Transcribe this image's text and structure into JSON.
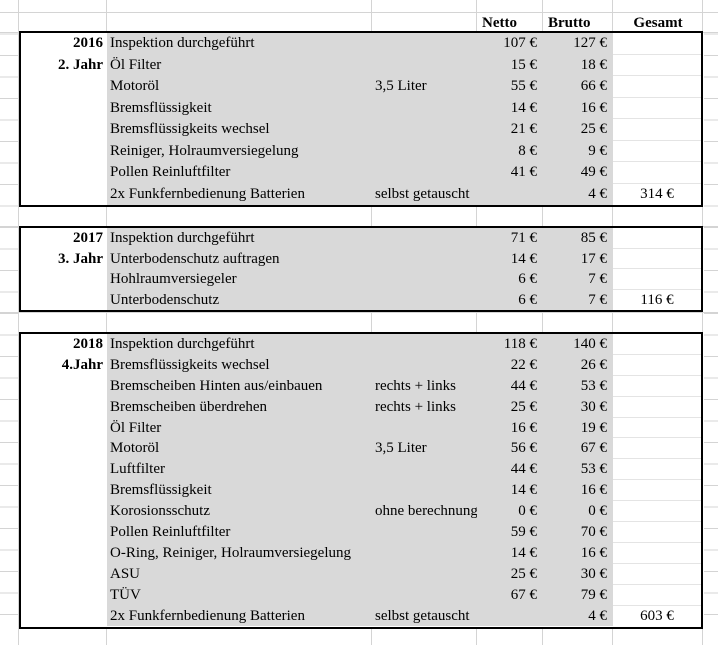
{
  "columns": {
    "netto": "Netto",
    "brutto": "Brutto",
    "gesamt": "Gesamt"
  },
  "colors": {
    "block_fill": "#d9d9d9",
    "gridline": "#d4d4d4",
    "faint_line": "#e4e4e4",
    "border": "#000000"
  },
  "blocks": [
    {
      "year": "2016",
      "jahr": "2. Jahr",
      "rows": [
        {
          "desc": "Inspektion durchgeführt",
          "netto": "107 €",
          "brutto": "127 €"
        },
        {
          "desc": "Öl Filter",
          "netto": "15 €",
          "brutto": "18 €"
        },
        {
          "desc": "Motoröl",
          "note": "3,5 Liter",
          "netto": "55 €",
          "brutto": "66 €"
        },
        {
          "desc": "Bremsflüssigkeit",
          "netto": "14 €",
          "brutto": "16 €"
        },
        {
          "desc": "Bremsflüssigkeits wechsel",
          "netto": "21 €",
          "brutto": "25 €"
        },
        {
          "desc": "Reiniger, Holraumversiegelung",
          "netto": "8 €",
          "brutto": "9 €"
        },
        {
          "desc": "Pollen Reinluftfilter",
          "netto": "41 €",
          "brutto": "49 €"
        },
        {
          "desc": "2x Funkfernbedienung Batterien",
          "note": "selbst getauscht",
          "netto": "",
          "brutto": "4 €",
          "gesamt": "314 €"
        }
      ]
    },
    {
      "year": "2017",
      "jahr": "3. Jahr",
      "rows": [
        {
          "desc": "Inspektion durchgeführt",
          "netto": "71 €",
          "brutto": "85 €"
        },
        {
          "desc": "Unterbodenschutz auftragen",
          "netto": "14 €",
          "brutto": "17 €"
        },
        {
          "desc": "Hohlraumversiegeler",
          "netto": "6 €",
          "brutto": "7 €"
        },
        {
          "desc": "Unterbodenschutz",
          "netto": "6 €",
          "brutto": "7 €",
          "gesamt": "116 €"
        }
      ]
    },
    {
      "year": "2018",
      "jahr": "4.Jahr",
      "rows": [
        {
          "desc": "Inspektion durchgeführt",
          "netto": "118 €",
          "brutto": "140 €"
        },
        {
          "desc": "Bremsflüssigkeits wechsel",
          "netto": "22 €",
          "brutto": "26 €"
        },
        {
          "desc": "Bremscheiben Hinten aus/einbauen",
          "note": "rechts + links",
          "netto": "44 €",
          "brutto": "53 €"
        },
        {
          "desc": "Bremscheiben überdrehen",
          "note": "rechts + links",
          "netto": "25 €",
          "brutto": "30 €"
        },
        {
          "desc": "Öl Filter",
          "netto": "16 €",
          "brutto": "19 €"
        },
        {
          "desc": "Motoröl",
          "note": "3,5 Liter",
          "netto": "56 €",
          "brutto": "67 €"
        },
        {
          "desc": "Luftfilter",
          "netto": "44 €",
          "brutto": "53 €"
        },
        {
          "desc": "Bremsflüssigkeit",
          "netto": "14 €",
          "brutto": "16 €"
        },
        {
          "desc": "Korosionsschutz",
          "note": "ohne berechnung",
          "netto": "0 €",
          "brutto": "0 €"
        },
        {
          "desc": "Pollen Reinluftfilter",
          "netto": "59 €",
          "brutto": "70 €"
        },
        {
          "desc": "O-Ring, Reiniger, Holraumversiegelung",
          "netto": "14 €",
          "brutto": "16 €"
        },
        {
          "desc": "ASU",
          "netto": "25 €",
          "brutto": "30 €"
        },
        {
          "desc": "TÜV",
          "netto": "67 €",
          "brutto": "79 €"
        },
        {
          "desc": "2x Funkfernbedienung Batterien",
          "note": "selbst getauscht",
          "netto": "",
          "brutto": "4 €",
          "gesamt": "603 €"
        }
      ]
    }
  ]
}
